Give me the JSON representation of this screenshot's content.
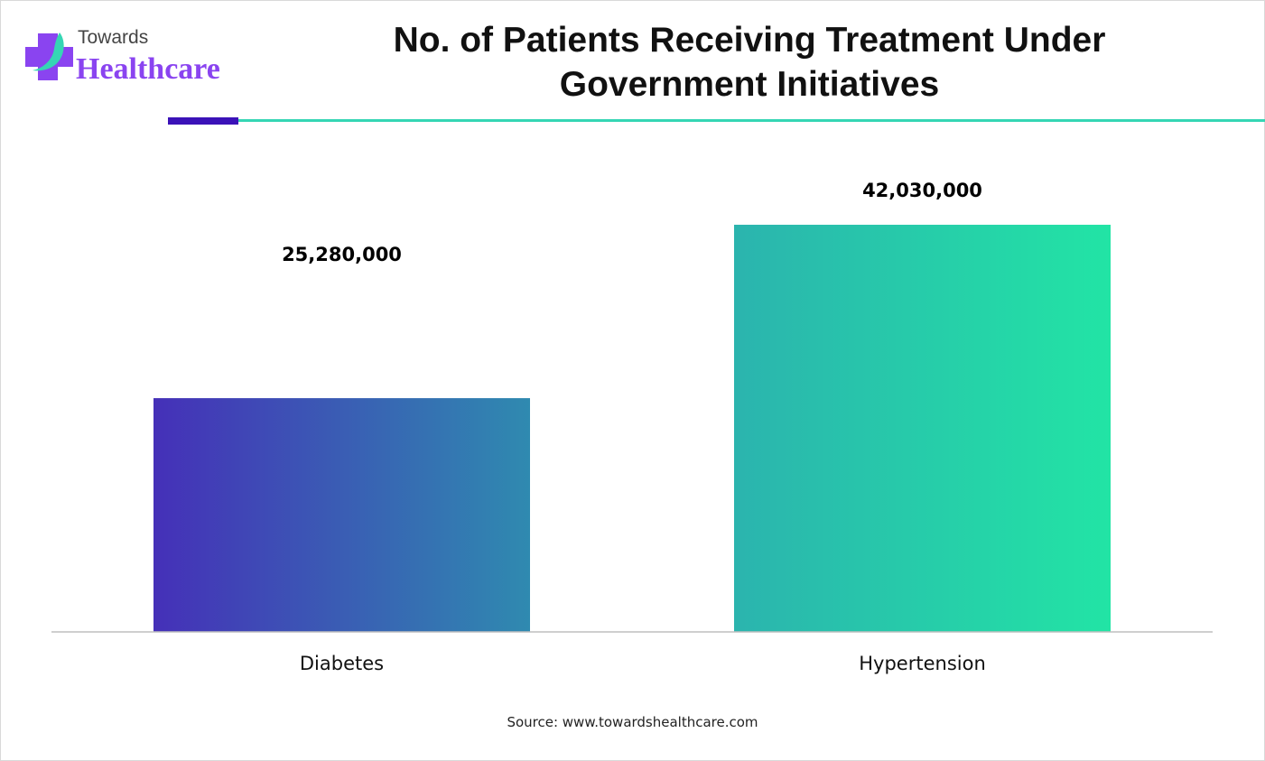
{
  "brand": {
    "line1": "Towards",
    "line2": "Healthcare"
  },
  "chart_data": {
    "type": "bar",
    "title": "No. of Patients Receiving Treatment Under Government Initiatives",
    "categories": [
      "Diabetes",
      "Hypertension"
    ],
    "values": [
      25280000,
      42030000
    ],
    "data_labels": [
      "25,280,000",
      "42,030,000"
    ],
    "xlabel": "",
    "ylabel": "",
    "ylim": [
      2700000,
      46300000
    ],
    "grid": false,
    "colors": [
      [
        "#4530b8",
        "#2f8ab0"
      ],
      [
        "#2bb4ae",
        "#22e4a5"
      ]
    ]
  },
  "source": "Source: www.towardshealthcare.com"
}
